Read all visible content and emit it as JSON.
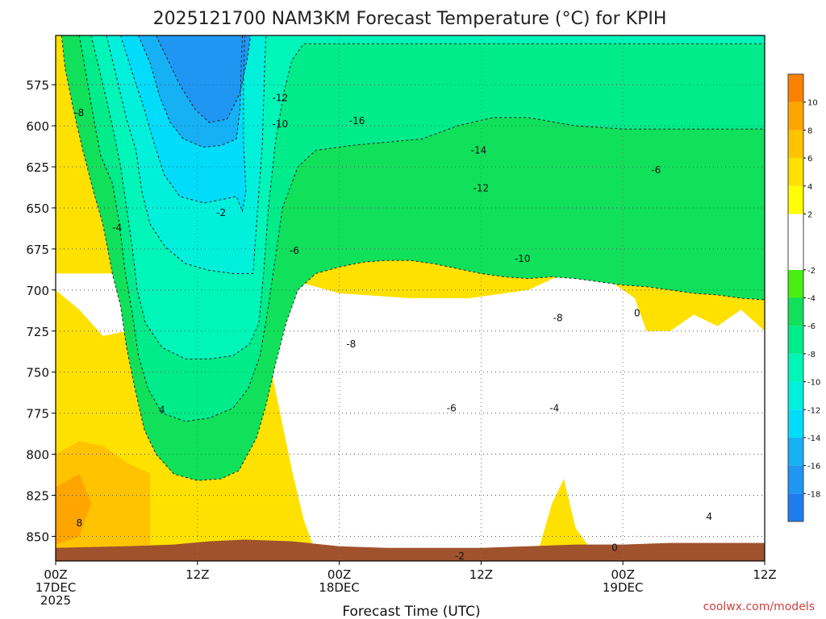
{
  "chart_data": {
    "type": "heatmap",
    "title": "2025121700 NAM3KM Forecast Temperature (°C) for KPIH",
    "xlabel": "Forecast Time (UTC)",
    "ylabel": "",
    "x_ticks": [
      {
        "hour": 0,
        "label": "00Z",
        "date": "17DEC",
        "year": "2025"
      },
      {
        "hour": 12,
        "label": "12Z",
        "date": "",
        "year": ""
      },
      {
        "hour": 24,
        "label": "00Z",
        "date": "18DEC",
        "year": ""
      },
      {
        "hour": 36,
        "label": "12Z",
        "date": "",
        "year": ""
      },
      {
        "hour": 48,
        "label": "00Z",
        "date": "19DEC",
        "year": ""
      },
      {
        "hour": 60,
        "label": "12Z",
        "date": "",
        "year": ""
      }
    ],
    "xlim": [
      0,
      60
    ],
    "y_ticks": [
      575,
      600,
      625,
      650,
      675,
      700,
      725,
      750,
      775,
      800,
      825,
      850
    ],
    "ylim": [
      545,
      865
    ],
    "grid": true,
    "colorbar": {
      "ticks": [
        10,
        8,
        6,
        4,
        2,
        -2,
        -4,
        -6,
        -8,
        -10,
        -12,
        -14,
        -16,
        -18
      ],
      "range": [
        -20,
        12
      ]
    },
    "levels": [
      {
        "lo": -20,
        "hi": -18,
        "color": "#1b7df0"
      },
      {
        "lo": -18,
        "hi": -16,
        "color": "#1f96f2"
      },
      {
        "lo": -16,
        "hi": -14,
        "color": "#16b0f5"
      },
      {
        "lo": -14,
        "hi": -12,
        "color": "#00dcfa"
      },
      {
        "lo": -12,
        "hi": -10,
        "color": "#00f0dc"
      },
      {
        "lo": -10,
        "hi": -8,
        "color": "#00f5b8"
      },
      {
        "lo": -8,
        "hi": -6,
        "color": "#00eb8a"
      },
      {
        "lo": -6,
        "hi": -4,
        "color": "#11e05a"
      },
      {
        "lo": -4,
        "hi": -2,
        "color": "#47f012"
      },
      {
        "lo": -2,
        "hi": 2,
        "color": "#ffffff"
      },
      {
        "lo": 2,
        "hi": 4,
        "color": "#ffff00"
      },
      {
        "lo": 4,
        "hi": 6,
        "color": "#ffe100"
      },
      {
        "lo": 6,
        "hi": 8,
        "color": "#ffc300"
      },
      {
        "lo": 8,
        "hi": 10,
        "color": "#ffa500"
      },
      {
        "lo": 10,
        "hi": 12,
        "color": "#fa8200"
      }
    ],
    "isotherm_depth_hpa": [
      {
        "temp": -16,
        "points": [
          [
            8.5,
            545
          ],
          [
            9.5,
            560
          ],
          [
            10.5,
            575
          ],
          [
            11.8,
            590
          ],
          [
            13,
            598
          ],
          [
            14.5,
            596
          ],
          [
            15.6,
            580
          ],
          [
            16.2,
            560
          ],
          [
            16.5,
            545
          ]
        ]
      },
      {
        "temp": -14,
        "points": [
          [
            7,
            545
          ],
          [
            8,
            562
          ],
          [
            8.8,
            582
          ],
          [
            9.7,
            598
          ],
          [
            10.8,
            608
          ],
          [
            12.5,
            613
          ],
          [
            14,
            612
          ],
          [
            15.3,
            608
          ],
          [
            15.6,
            590
          ],
          [
            15.7,
            565
          ],
          [
            15.8,
            545
          ]
        ]
      },
      {
        "temp": -12,
        "points": [
          [
            5.5,
            545
          ],
          [
            6.5,
            568
          ],
          [
            7.5,
            590
          ],
          [
            8.3,
            610
          ],
          [
            9.2,
            630
          ],
          [
            10.5,
            643
          ],
          [
            12.5,
            647
          ],
          [
            14,
            645
          ],
          [
            15.3,
            643
          ],
          [
            15.8,
            652
          ],
          [
            16.1,
            640
          ],
          [
            15.9,
            610
          ],
          [
            15.9,
            570
          ],
          [
            16,
            545
          ]
        ]
      },
      {
        "temp": -10,
        "points": [
          [
            4.3,
            545
          ],
          [
            5.2,
            572
          ],
          [
            6,
            596
          ],
          [
            6.8,
            615
          ],
          [
            7.3,
            640
          ],
          [
            8,
            660
          ],
          [
            9.3,
            674
          ],
          [
            11,
            684
          ],
          [
            13,
            688
          ],
          [
            15,
            690
          ],
          [
            16.7,
            690
          ],
          [
            17.1,
            650
          ],
          [
            17.5,
            610
          ],
          [
            17.7,
            560
          ],
          [
            17.8,
            545
          ]
        ]
      },
      {
        "temp": -8,
        "points": [
          [
            3,
            545
          ],
          [
            4,
            575
          ],
          [
            4.8,
            600
          ],
          [
            5.5,
            625
          ],
          [
            6,
            650
          ],
          [
            6.5,
            675
          ],
          [
            6.9,
            700
          ],
          [
            7.6,
            720
          ],
          [
            9,
            735
          ],
          [
            11,
            742
          ],
          [
            13,
            742
          ],
          [
            15,
            740
          ],
          [
            16.4,
            733
          ],
          [
            17.2,
            720
          ],
          [
            17.6,
            690
          ],
          [
            18,
            650
          ],
          [
            18.6,
            610
          ],
          [
            19.3,
            580
          ],
          [
            20,
            560
          ],
          [
            21,
            550
          ],
          [
            25,
            550
          ],
          [
            29,
            550
          ],
          [
            33,
            550
          ],
          [
            37,
            550
          ],
          [
            41,
            550
          ],
          [
            45,
            550
          ],
          [
            48,
            550
          ],
          [
            52,
            550
          ],
          [
            56,
            550
          ],
          [
            60,
            550
          ]
        ]
      },
      {
        "temp": -6,
        "points": [
          [
            2,
            545
          ],
          [
            2.6,
            570
          ],
          [
            3.2,
            595
          ],
          [
            3.8,
            618
          ],
          [
            4.8,
            635
          ],
          [
            5.4,
            660
          ],
          [
            5.9,
            690
          ],
          [
            6.5,
            715
          ],
          [
            7,
            740
          ],
          [
            7.8,
            760
          ],
          [
            9,
            775
          ],
          [
            11,
            780
          ],
          [
            13,
            778
          ],
          [
            15,
            772
          ],
          [
            16.3,
            760
          ],
          [
            17.3,
            740
          ],
          [
            18,
            710
          ],
          [
            18.6,
            680
          ],
          [
            19.2,
            650
          ],
          [
            20.5,
            625
          ],
          [
            22,
            615
          ],
          [
            25,
            612
          ],
          [
            28,
            610
          ],
          [
            31,
            608
          ],
          [
            34,
            600
          ],
          [
            37,
            595
          ],
          [
            40,
            595
          ],
          [
            44,
            600
          ],
          [
            48,
            602
          ],
          [
            52,
            602
          ],
          [
            56,
            602
          ],
          [
            60,
            602
          ]
        ]
      },
      {
        "temp": -4,
        "points": [
          [
            0.5,
            545
          ],
          [
            0.8,
            565
          ],
          [
            1.5,
            590
          ],
          [
            2.3,
            615
          ],
          [
            3.2,
            640
          ],
          [
            4,
            660
          ],
          [
            4.8,
            690
          ],
          [
            5.5,
            710
          ],
          [
            6,
            735
          ],
          [
            6.7,
            760
          ],
          [
            7.5,
            785
          ],
          [
            8.5,
            800
          ],
          [
            10,
            812
          ],
          [
            12,
            816
          ],
          [
            14,
            815
          ],
          [
            15.5,
            810
          ],
          [
            17,
            790
          ],
          [
            17.8,
            770
          ],
          [
            18.6,
            745
          ],
          [
            19.5,
            720
          ],
          [
            20.5,
            700
          ],
          [
            22,
            690
          ],
          [
            24,
            686
          ],
          [
            26,
            683
          ],
          [
            28,
            682
          ],
          [
            30,
            682
          ],
          [
            32,
            684
          ],
          [
            34,
            687
          ],
          [
            36,
            690
          ],
          [
            38,
            692
          ],
          [
            40,
            693
          ],
          [
            42,
            692
          ],
          [
            44,
            693
          ],
          [
            46,
            695
          ],
          [
            48,
            697
          ],
          [
            50,
            698
          ],
          [
            52,
            700
          ],
          [
            54,
            702
          ],
          [
            56,
            703
          ],
          [
            58,
            705
          ],
          [
            60,
            706
          ]
        ]
      }
    ],
    "contour_labels": [
      {
        "text": "-16",
        "x": 25.5,
        "p": 597
      },
      {
        "text": "-14",
        "x": 35.8,
        "p": 615
      },
      {
        "text": "-12",
        "x": 19.0,
        "p": 583
      },
      {
        "text": "-12",
        "x": 36.0,
        "p": 638
      },
      {
        "text": "-10",
        "x": 19.0,
        "p": 599
      },
      {
        "text": "-10",
        "x": 39.5,
        "p": 681
      },
      {
        "text": "-8",
        "x": 2.0,
        "p": 592
      },
      {
        "text": "-8",
        "x": 25.0,
        "p": 733
      },
      {
        "text": "-8",
        "x": 42.5,
        "p": 717
      },
      {
        "text": "-6",
        "x": 20.2,
        "p": 676
      },
      {
        "text": "-6",
        "x": 33.5,
        "p": 772
      },
      {
        "text": "-6",
        "x": 50.8,
        "p": 627
      },
      {
        "text": "-4",
        "x": 5.2,
        "p": 662
      },
      {
        "text": "-4",
        "x": 42.2,
        "p": 772
      },
      {
        "text": "-2",
        "x": 14.0,
        "p": 653
      },
      {
        "text": "-2",
        "x": 34.2,
        "p": 862
      },
      {
        "text": "0",
        "x": 49.2,
        "p": 714
      },
      {
        "text": "0",
        "x": 47.3,
        "p": 857
      },
      {
        "text": "4",
        "x": 9.0,
        "p": 773
      },
      {
        "text": "4",
        "x": 55.3,
        "p": 838
      },
      {
        "text": "8",
        "x": 2.0,
        "p": 842
      }
    ]
  },
  "credit": "coolwx.com/models"
}
